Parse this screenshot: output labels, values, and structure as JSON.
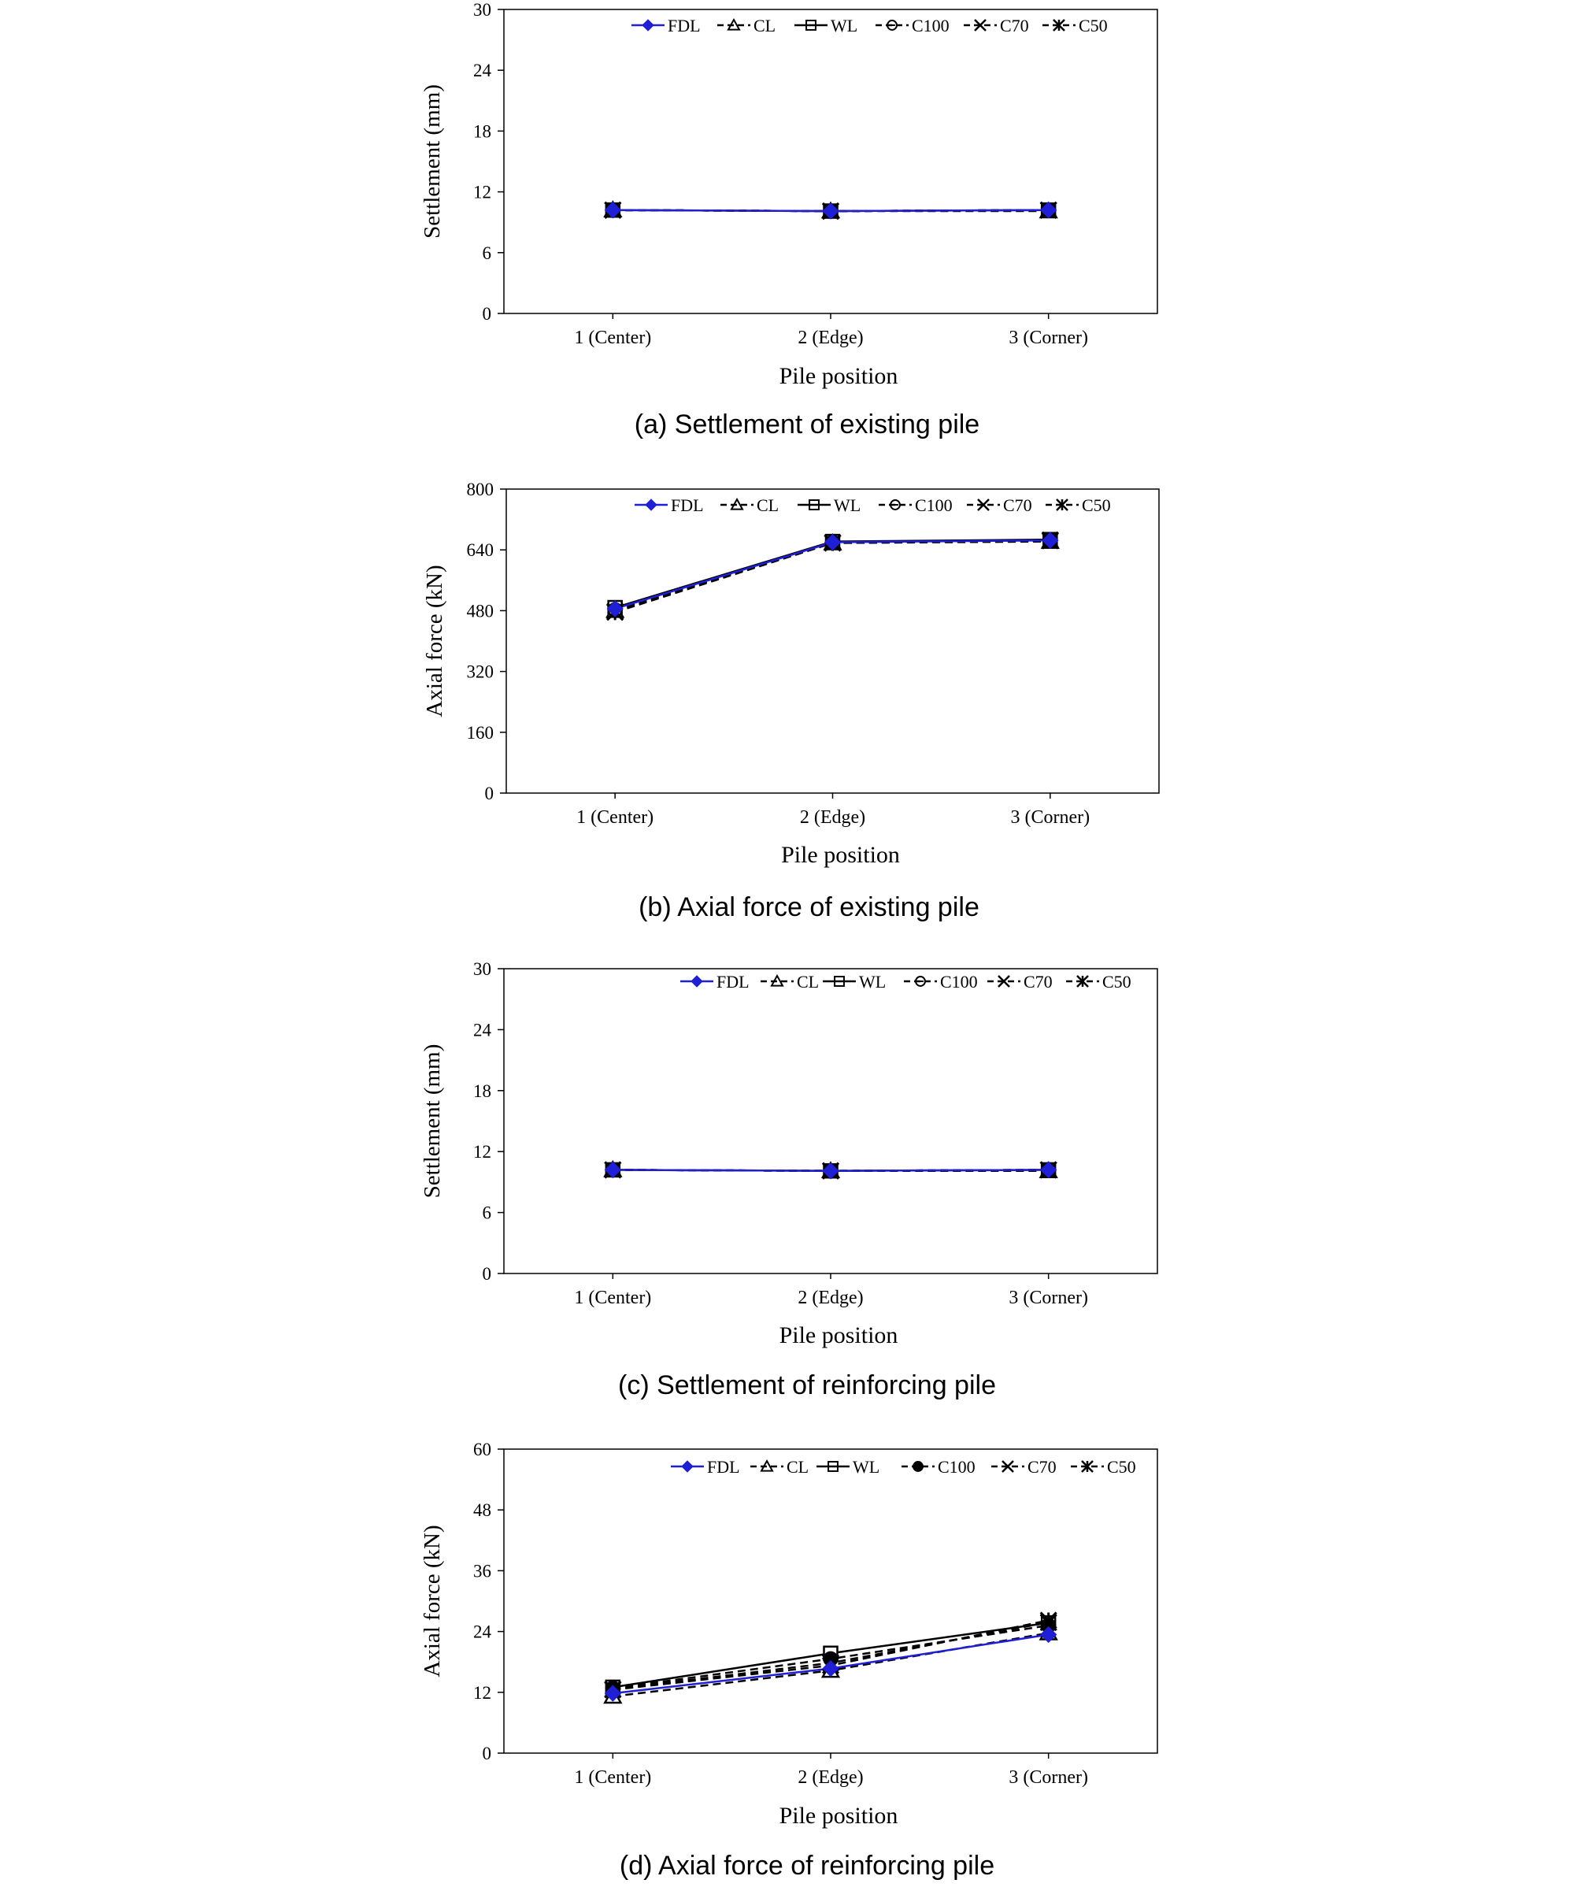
{
  "legend_labels": [
    "FDL",
    "CL",
    "WL",
    "C100",
    "C70",
    "C50"
  ],
  "legend_series_colors": {
    "FDL": "#1f1fd6",
    "default": "#000000"
  },
  "chart_data": [
    {
      "type": "line",
      "caption": "(a) Settlement of existing pile",
      "xlabel": "Pile position",
      "ylabel": "Settlement (mm)",
      "categories": [
        "1 (Center)",
        "2 (Edge)",
        "3 (Corner)"
      ],
      "ylim": [
        0,
        30
      ],
      "yticks": [
        0,
        6,
        12,
        18,
        24,
        30
      ],
      "legend_position": "top-right",
      "series": [
        {
          "name": "FDL",
          "values": [
            10.2,
            10.1,
            10.2
          ]
        },
        {
          "name": "CL",
          "values": [
            10.2,
            10.1,
            10.1
          ]
        },
        {
          "name": "WL",
          "values": [
            10.2,
            10.1,
            10.2
          ]
        },
        {
          "name": "C100",
          "values": [
            10.2,
            10.1,
            10.2
          ]
        },
        {
          "name": "C70",
          "values": [
            10.2,
            10.1,
            10.2
          ]
        },
        {
          "name": "C50",
          "values": [
            10.2,
            10.1,
            10.2
          ]
        }
      ]
    },
    {
      "type": "line",
      "caption": "(b) Axial force of existing pile",
      "xlabel": "Pile position",
      "ylabel": "Axial force (kN)",
      "categories": [
        "1 (Center)",
        "2 (Edge)",
        "3 (Corner)"
      ],
      "ylim": [
        0,
        800
      ],
      "yticks": [
        0,
        160,
        320,
        480,
        640,
        800
      ],
      "legend_position": "top-right",
      "series": [
        {
          "name": "FDL",
          "values": [
            485,
            660,
            665
          ]
        },
        {
          "name": "CL",
          "values": [
            480,
            658,
            662
          ]
        },
        {
          "name": "WL",
          "values": [
            488,
            662,
            667
          ]
        },
        {
          "name": "C100",
          "values": [
            482,
            660,
            665
          ]
        },
        {
          "name": "C70",
          "values": [
            478,
            659,
            664
          ]
        },
        {
          "name": "C50",
          "values": [
            476,
            658,
            666
          ]
        }
      ]
    },
    {
      "type": "line",
      "caption": "(c) Settlement of reinforcing pile",
      "xlabel": "Pile position",
      "ylabel": "Settlement (mm)",
      "categories": [
        "1 (Center)",
        "2 (Edge)",
        "3 (Corner)"
      ],
      "ylim": [
        0,
        30
      ],
      "yticks": [
        0,
        6,
        12,
        18,
        24,
        30
      ],
      "legend_position": "top-right",
      "series": [
        {
          "name": "FDL",
          "values": [
            10.2,
            10.1,
            10.2
          ]
        },
        {
          "name": "CL",
          "values": [
            10.2,
            10.1,
            10.1
          ]
        },
        {
          "name": "WL",
          "values": [
            10.2,
            10.1,
            10.2
          ]
        },
        {
          "name": "C100",
          "values": [
            10.2,
            10.1,
            10.2
          ]
        },
        {
          "name": "C70",
          "values": [
            10.2,
            10.1,
            10.2
          ]
        },
        {
          "name": "C50",
          "values": [
            10.2,
            10.1,
            10.2
          ]
        }
      ]
    },
    {
      "type": "line",
      "caption": "(d) Axial force of reinforcing pile",
      "xlabel": "Pile position",
      "ylabel": "Axial force (kN)",
      "categories": [
        "1 (Center)",
        "2 (Edge)",
        "3 (Corner)"
      ],
      "ylim": [
        0,
        60
      ],
      "yticks": [
        0,
        12,
        24,
        36,
        48,
        60
      ],
      "legend_position": "top-right",
      "series": [
        {
          "name": "FDL",
          "values": [
            11.8,
            16.7,
            23.4
          ]
        },
        {
          "name": "CL",
          "values": [
            11.2,
            16.3,
            23.7
          ]
        },
        {
          "name": "WL",
          "values": [
            13.0,
            19.7,
            25.7
          ]
        },
        {
          "name": "C100",
          "values": [
            12.8,
            18.6,
            25.2
          ]
        },
        {
          "name": "C70",
          "values": [
            12.6,
            17.8,
            25.8
          ]
        },
        {
          "name": "C50",
          "values": [
            12.5,
            17.3,
            26.2
          ]
        }
      ]
    }
  ]
}
